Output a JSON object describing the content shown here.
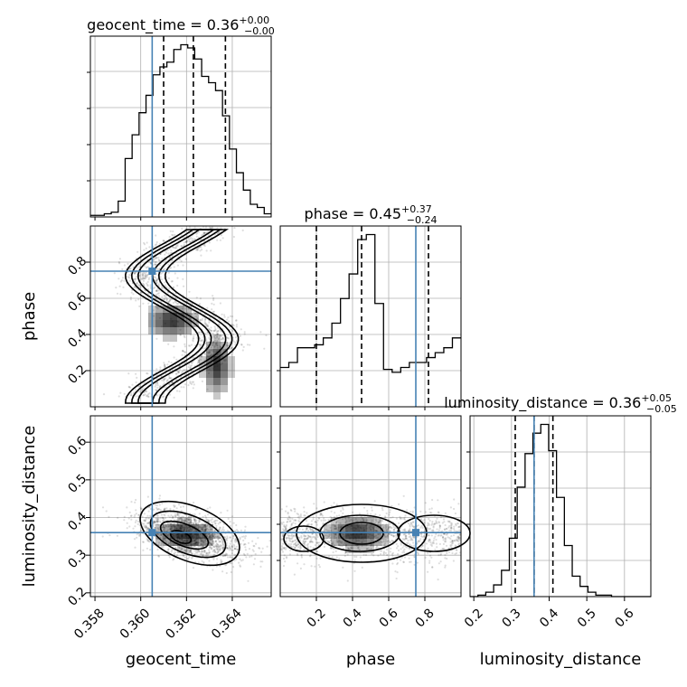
{
  "chart_data": {
    "type": "corner",
    "parameters": [
      "geocent_time",
      "phase",
      "luminosity_distance"
    ],
    "titles": [
      {
        "param": "geocent_time",
        "label": "geocent_time = 0.36",
        "plus": "+0.00",
        "minus": "−0.00"
      },
      {
        "param": "phase",
        "label": "phase = 0.45",
        "plus": "+0.37",
        "minus": "−0.24"
      },
      {
        "param": "luminosity_distance",
        "label": "luminosity_distance = 0.36",
        "plus": "+0.05",
        "minus": "−0.05"
      }
    ],
    "ranges": {
      "geocent_time": [
        0.3578,
        0.3657
      ],
      "phase": [
        0.0,
        1.0
      ],
      "luminosity_distance": [
        0.19,
        0.67
      ]
    },
    "ticks": {
      "geocent_time": {
        "values": [
          0.358,
          0.36,
          0.362,
          0.364
        ],
        "labels": [
          "0.358",
          "0.360",
          "0.362",
          "0.364"
        ]
      },
      "phase": {
        "values": [
          0.2,
          0.4,
          0.6,
          0.8
        ],
        "labels": [
          "0.2",
          "0.4",
          "0.6",
          "0.8"
        ]
      },
      "luminosity_distance": {
        "values": [
          0.2,
          0.3,
          0.4,
          0.5,
          0.6
        ],
        "labels": [
          "0.2",
          "0.3",
          "0.4",
          "0.5",
          "0.6"
        ]
      }
    },
    "truths": {
      "geocent_time": 0.3605,
      "phase": 0.75,
      "luminosity_distance": 0.36
    },
    "quantiles": {
      "geocent_time": [
        0.361,
        0.3623,
        0.3637
      ],
      "phase": [
        0.2,
        0.45,
        0.82
      ],
      "luminosity_distance": [
        0.31,
        0.36,
        0.41
      ]
    },
    "histograms": {
      "geocent_time": {
        "edges_range": [
          0.3578,
          0.3657
        ],
        "counts": [
          1,
          1,
          2,
          3,
          10,
          37,
          52,
          66,
          77,
          90,
          95,
          98,
          106,
          109,
          107,
          100,
          89,
          85,
          80,
          64,
          43,
          28,
          17,
          8,
          6,
          2
        ]
      },
      "phase": {
        "edges_range": [
          0.0,
          1.0
        ],
        "counts": [
          40,
          45,
          60,
          60,
          63,
          70,
          85,
          110,
          135,
          170,
          175,
          105,
          38,
          35,
          40,
          45,
          45,
          50,
          55,
          60,
          70
        ]
      },
      "luminosity_distance": {
        "edges_range": [
          0.19,
          0.67
        ],
        "counts": [
          0,
          1,
          3,
          8,
          18,
          40,
          75,
          98,
          112,
          118,
          100,
          68,
          35,
          14,
          7,
          3,
          1,
          1,
          0,
          0,
          0,
          0,
          0
        ]
      }
    },
    "grid": true
  }
}
